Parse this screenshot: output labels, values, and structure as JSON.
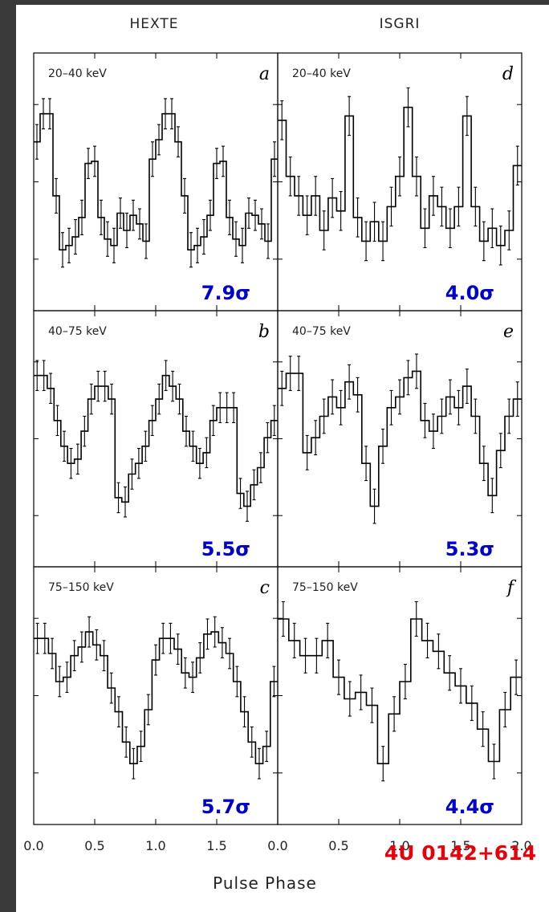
{
  "figure": {
    "col_titles": [
      "HEXTE",
      "ISGRI"
    ],
    "xlabel": "Pulse Phase",
    "source_label": "4U 0142+614",
    "colors": {
      "frame": "#3a3a3a",
      "source_label": "#e8000b",
      "significance": "#0000cc",
      "trace": "#000000"
    }
  },
  "chart_data": [
    {
      "type": "step",
      "panel": "a",
      "instrument": "HEXTE",
      "energy": "20–40 keV",
      "significance": "7.9σ",
      "xlim": [
        0,
        2
      ],
      "ylim": [
        0,
        1
      ],
      "x_ticks": [
        "0.0",
        "0.5",
        "1.0",
        "1.5"
      ],
      "y": [
        0.7,
        0.83,
        0.83,
        0.45,
        0.2,
        0.22,
        0.26,
        0.35,
        0.6,
        0.61,
        0.35,
        0.25,
        0.22,
        0.37,
        0.29,
        0.36,
        0.32,
        0.24,
        0.62,
        0.71,
        0.83,
        0.83,
        0.7,
        0.45,
        0.2,
        0.22,
        0.26,
        0.36,
        0.6,
        0.61,
        0.35,
        0.25,
        0.22,
        0.37,
        0.36,
        0.32,
        0.24,
        0.62
      ],
      "err": [
        0.08,
        0.07,
        0.07,
        0.08,
        0.08,
        0.08,
        0.08,
        0.08,
        0.07,
        0.07,
        0.08,
        0.08,
        0.08,
        0.07,
        0.08,
        0.07,
        0.07,
        0.08,
        0.08,
        0.07,
        0.07,
        0.07,
        0.07,
        0.08,
        0.08,
        0.08,
        0.08,
        0.07,
        0.07,
        0.07,
        0.08,
        0.08,
        0.08,
        0.07,
        0.07,
        0.07,
        0.08,
        0.08
      ]
    },
    {
      "type": "step",
      "panel": "b",
      "instrument": "HEXTE",
      "energy": "40–75 keV",
      "significance": "5.5σ",
      "xlim": [
        0,
        2
      ],
      "ylim": [
        0,
        1
      ],
      "x_ticks": [
        "0.0",
        "0.5",
        "1.0",
        "1.5"
      ],
      "y": [
        0.81,
        0.81,
        0.75,
        0.6,
        0.48,
        0.4,
        0.42,
        0.55,
        0.7,
        0.76,
        0.76,
        0.7,
        0.24,
        0.22,
        0.35,
        0.4,
        0.48,
        0.6,
        0.7,
        0.81,
        0.76,
        0.7,
        0.55,
        0.48,
        0.4,
        0.45,
        0.6,
        0.66,
        0.66,
        0.66,
        0.26,
        0.2,
        0.3,
        0.38,
        0.52,
        0.6
      ],
      "err": [
        0.07,
        0.07,
        0.07,
        0.07,
        0.07,
        0.07,
        0.07,
        0.07,
        0.07,
        0.07,
        0.07,
        0.07,
        0.07,
        0.07,
        0.07,
        0.07,
        0.07,
        0.07,
        0.07,
        0.07,
        0.07,
        0.07,
        0.07,
        0.07,
        0.07,
        0.07,
        0.07,
        0.07,
        0.07,
        0.07,
        0.07,
        0.07,
        0.07,
        0.07,
        0.07,
        0.07
      ]
    },
    {
      "type": "step",
      "panel": "c",
      "instrument": "HEXTE",
      "energy": "75–150 keV",
      "significance": "5.7σ",
      "xlim": [
        0,
        2
      ],
      "ylim": [
        0,
        1
      ],
      "x_ticks": [
        "0.0",
        "0.5",
        "1.0",
        "1.5"
      ],
      "y": [
        0.78,
        0.78,
        0.71,
        0.58,
        0.6,
        0.7,
        0.74,
        0.81,
        0.75,
        0.7,
        0.55,
        0.44,
        0.3,
        0.2,
        0.28,
        0.45,
        0.68,
        0.78,
        0.78,
        0.73,
        0.62,
        0.6,
        0.69,
        0.8,
        0.81,
        0.76,
        0.71,
        0.58,
        0.44,
        0.3,
        0.2,
        0.28,
        0.58
      ],
      "err": [
        0.07,
        0.07,
        0.07,
        0.07,
        0.07,
        0.07,
        0.07,
        0.07,
        0.07,
        0.07,
        0.07,
        0.07,
        0.07,
        0.07,
        0.07,
        0.07,
        0.07,
        0.07,
        0.07,
        0.07,
        0.07,
        0.07,
        0.07,
        0.07,
        0.07,
        0.07,
        0.07,
        0.07,
        0.07,
        0.07,
        0.07,
        0.07,
        0.07
      ]
    },
    {
      "type": "step",
      "panel": "d",
      "instrument": "ISGRI",
      "energy": "20–40 keV",
      "significance": "4.0σ",
      "xlim": [
        0,
        2
      ],
      "ylim": [
        0,
        1
      ],
      "x_ticks": [
        "0.0",
        "0.5",
        "1.0",
        "1.5",
        "2.0"
      ],
      "y": [
        0.8,
        0.54,
        0.45,
        0.36,
        0.45,
        0.29,
        0.44,
        0.38,
        0.82,
        0.35,
        0.24,
        0.33,
        0.24,
        0.4,
        0.54,
        0.86,
        0.54,
        0.3,
        0.45,
        0.4,
        0.3,
        0.4,
        0.82,
        0.4,
        0.24,
        0.3,
        0.22,
        0.29,
        0.59
      ],
      "err": [
        0.09,
        0.09,
        0.09,
        0.09,
        0.09,
        0.09,
        0.09,
        0.09,
        0.09,
        0.09,
        0.09,
        0.09,
        0.09,
        0.09,
        0.09,
        0.09,
        0.09,
        0.09,
        0.09,
        0.09,
        0.09,
        0.09,
        0.09,
        0.09,
        0.09,
        0.09,
        0.09,
        0.09,
        0.09
      ]
    },
    {
      "type": "step",
      "panel": "e",
      "instrument": "ISGRI",
      "energy": "40–75 keV",
      "significance": "5.3σ",
      "xlim": [
        0,
        2
      ],
      "ylim": [
        0,
        1
      ],
      "x_ticks": [
        "0.0",
        "0.5",
        "1.0",
        "1.5",
        "2.0"
      ],
      "y": [
        0.75,
        0.82,
        0.82,
        0.45,
        0.52,
        0.62,
        0.71,
        0.66,
        0.78,
        0.72,
        0.4,
        0.2,
        0.48,
        0.66,
        0.71,
        0.8,
        0.83,
        0.6,
        0.55,
        0.62,
        0.71,
        0.66,
        0.76,
        0.62,
        0.4,
        0.25,
        0.46,
        0.62,
        0.7
      ],
      "err": [
        0.08,
        0.08,
        0.08,
        0.08,
        0.08,
        0.08,
        0.08,
        0.08,
        0.08,
        0.08,
        0.08,
        0.08,
        0.08,
        0.08,
        0.08,
        0.08,
        0.08,
        0.08,
        0.08,
        0.08,
        0.08,
        0.08,
        0.08,
        0.08,
        0.08,
        0.08,
        0.08,
        0.08,
        0.08
      ]
    },
    {
      "type": "step",
      "panel": "f",
      "instrument": "ISGRI",
      "energy": "75–150 keV",
      "significance": "4.4σ",
      "xlim": [
        0,
        2
      ],
      "ylim": [
        0,
        1
      ],
      "x_ticks": [
        "0.0",
        "0.5",
        "1.0",
        "1.5",
        "2.0"
      ],
      "y": [
        0.87,
        0.77,
        0.7,
        0.7,
        0.77,
        0.6,
        0.5,
        0.53,
        0.47,
        0.2,
        0.43,
        0.58,
        0.87,
        0.77,
        0.72,
        0.62,
        0.56,
        0.48,
        0.36,
        0.21,
        0.45,
        0.6
      ],
      "err": [
        0.08,
        0.08,
        0.08,
        0.08,
        0.08,
        0.08,
        0.08,
        0.08,
        0.08,
        0.08,
        0.08,
        0.08,
        0.08,
        0.08,
        0.08,
        0.08,
        0.08,
        0.08,
        0.08,
        0.08,
        0.08,
        0.08
      ]
    }
  ]
}
